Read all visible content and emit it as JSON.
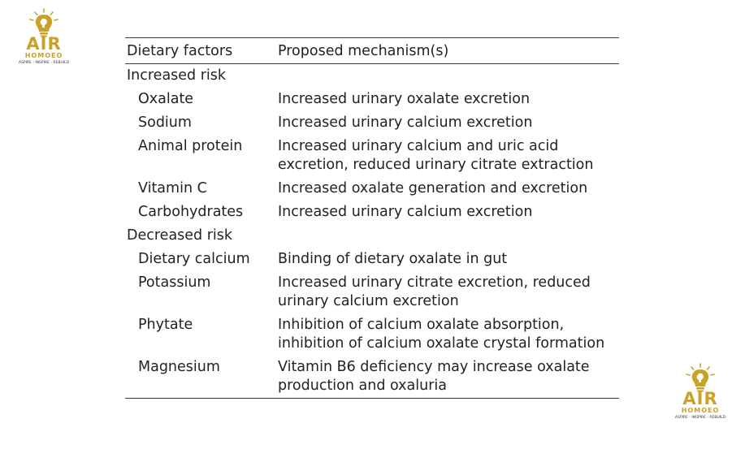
{
  "logo": {
    "name": "AIR",
    "sub": "HOMOEO",
    "tagline": "ASPIRE - INSPIRE - REBUILD",
    "color": "#c9a227",
    "icon": "lightbulb-head-icon"
  },
  "table": {
    "headers": [
      "Dietary factors",
      "Proposed mechanism(s)"
    ],
    "groups": [
      {
        "label": "Increased risk",
        "rows": [
          {
            "factor": "Oxalate",
            "mechanism": "Increased urinary oxalate excretion"
          },
          {
            "factor": "Sodium",
            "mechanism": "Increased urinary calcium excretion"
          },
          {
            "factor": "Animal protein",
            "mechanism": "Increased urinary calcium and uric acid excretion, reduced urinary citrate extraction"
          },
          {
            "factor": "Vitamin C",
            "mechanism": "Increased oxalate generation and excretion"
          },
          {
            "factor": "Carbohydrates",
            "mechanism": "Increased urinary calcium excretion"
          }
        ]
      },
      {
        "label": "Decreased risk",
        "rows": [
          {
            "factor": "Dietary calcium",
            "mechanism": "Binding of dietary oxalate in gut"
          },
          {
            "factor": "Potassium",
            "mechanism": "Increased urinary citrate excretion, reduced urinary calcium excretion"
          },
          {
            "factor": "Phytate",
            "mechanism": "Inhibition of calcium oxalate absorption, inhibition of calcium oxalate crystal formation"
          },
          {
            "factor": "Magnesium",
            "mechanism": "Vitamin B6 deficiency may increase oxalate production and oxaluria"
          }
        ]
      }
    ]
  }
}
